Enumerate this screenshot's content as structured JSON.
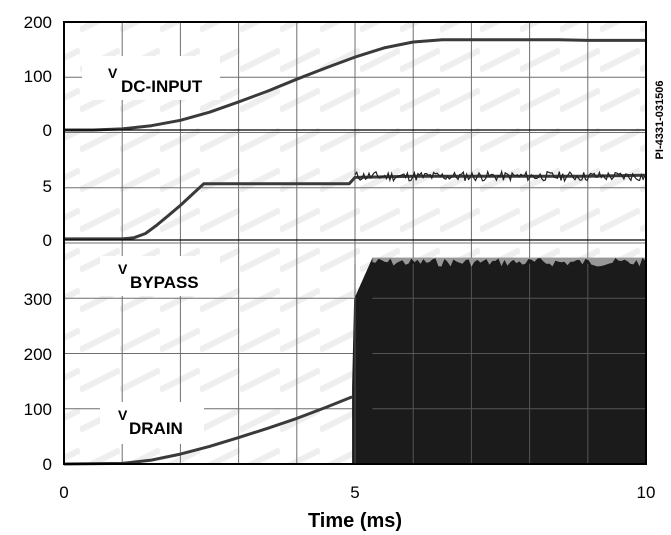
{
  "chart_data": {
    "type": "line",
    "xlabel": "Time (ms)",
    "x_ticks": [
      "0",
      "5",
      "10"
    ],
    "xlim": [
      0,
      10
    ],
    "grid": true,
    "reference_code": "PI-4331-031506",
    "panels": [
      {
        "name": "V DC-INPUT",
        "label_main": "V",
        "label_sub": "DC-INPUT",
        "ylim": [
          0,
          200
        ],
        "y_ticks": [
          "200",
          "100",
          "0"
        ],
        "series": [
          {
            "name": "V DC-INPUT",
            "x": [
              0,
              0.5,
              1.0,
              1.5,
              2.0,
              2.5,
              3.0,
              3.5,
              4.0,
              4.5,
              5.0,
              5.5,
              6.0,
              6.5,
              7.0,
              7.5,
              8.0,
              8.5,
              9.0,
              9.5,
              10.0
            ],
            "y": [
              0,
              0,
              2,
              8,
              18,
              33,
              52,
              72,
              94,
              115,
              135,
              152,
              163,
              167,
              167,
              167,
              167,
              167,
              166,
              166,
              166
            ]
          }
        ]
      },
      {
        "name": "V BYPASS",
        "label_main": "V",
        "label_sub": "BYPASS",
        "ylim": [
          0,
          8.5
        ],
        "y_ticks": [
          "5",
          "0"
        ],
        "series": [
          {
            "name": "V BYPASS",
            "x": [
              0,
              1.0,
              1.2,
              1.4,
              1.6,
              1.8,
              2.0,
              2.2,
              2.4,
              2.6,
              3.0,
              3.5,
              4.0,
              4.5,
              4.9,
              5.0,
              6.0,
              7.0,
              8.0,
              9.0,
              10.0
            ],
            "y": [
              0.1,
              0.1,
              0.2,
              0.6,
              1.4,
              2.3,
              3.2,
              4.2,
              5.2,
              5.2,
              5.2,
              5.2,
              5.2,
              5.2,
              5.2,
              5.8,
              5.9,
              5.9,
              5.9,
              5.9,
              6.0
            ]
          }
        ]
      },
      {
        "name": "V DRAIN",
        "label_main": "V",
        "label_sub": "DRAIN",
        "ylim": [
          0,
          380
        ],
        "y_ticks": [
          "300",
          "200",
          "100",
          "0"
        ],
        "series": [
          {
            "name": "V DRAIN",
            "x": [
              0,
              1.0,
              1.5,
              2.0,
              2.5,
              3.0,
              3.5,
              4.0,
              4.5,
              4.95
            ],
            "y": [
              0,
              1,
              7,
              18,
              32,
              48,
              65,
              83,
              103,
              122
            ]
          }
        ],
        "switching_region": {
          "x_start": 4.95,
          "x_end": 10.0,
          "peak_top": 375,
          "early_top": 300,
          "base": 0
        }
      }
    ]
  }
}
